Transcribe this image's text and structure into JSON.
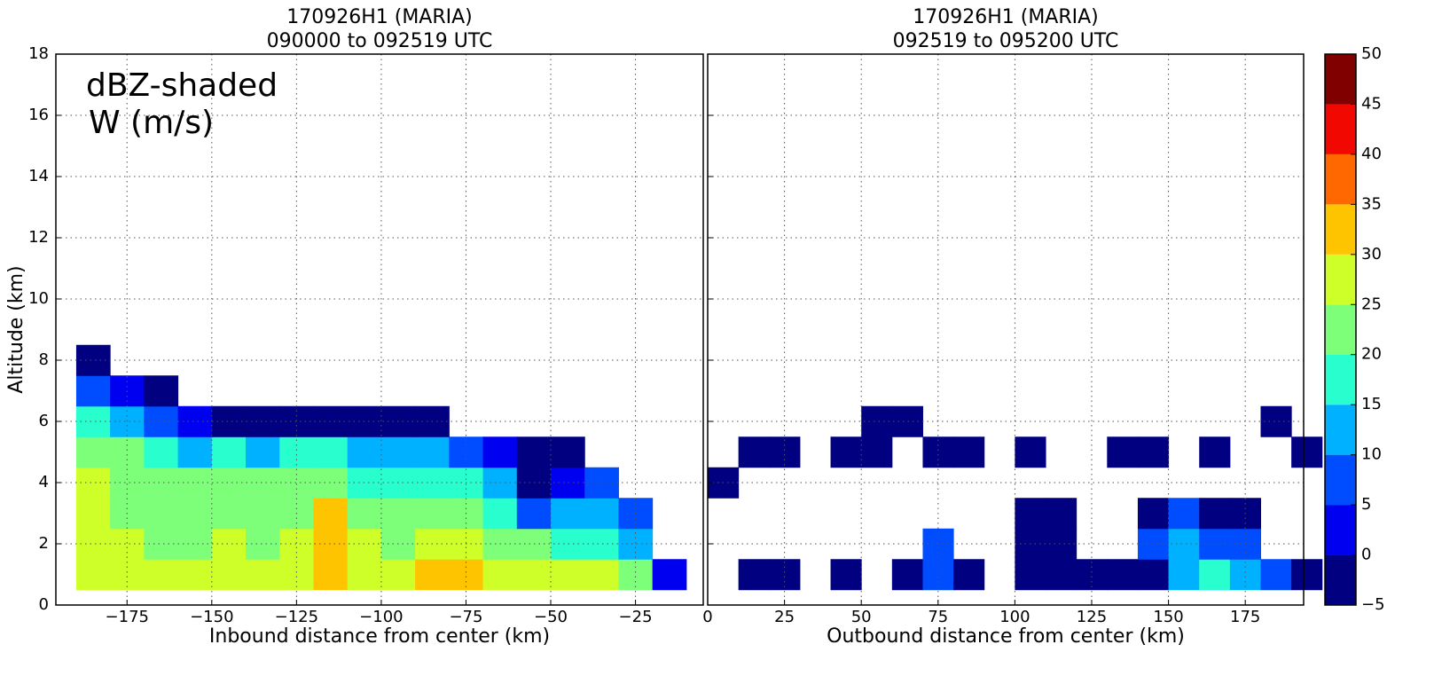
{
  "chart_data": [
    {
      "type": "contourf",
      "title": [
        "170926H1 (MARIA)",
        "090000 to 092519 UTC"
      ],
      "annotation": [
        "dBZ-shaded",
        "W (m/s)"
      ],
      "xlabel": "Inbound distance from center (km)",
      "ylabel": "Altitude (km)",
      "xlim": [
        -196,
        -5
      ],
      "ylim": [
        0,
        18
      ],
      "xticks": [
        {
          "value": -175,
          "label": "−175"
        },
        {
          "value": -150,
          "label": "−150"
        },
        {
          "value": -125,
          "label": "−125"
        },
        {
          "value": -100,
          "label": "−100"
        },
        {
          "value": -75,
          "label": "−75"
        },
        {
          "value": -50,
          "label": "−50"
        },
        {
          "value": -25,
          "label": "−25"
        }
      ],
      "yticks": [
        0,
        2,
        4,
        6,
        8,
        10,
        12,
        14,
        16,
        18
      ],
      "grid": true,
      "x": [
        -185,
        -175,
        -165,
        -155,
        -145,
        -135,
        -125,
        -115,
        -105,
        -95,
        -85,
        -75,
        -65,
        -55,
        -45,
        -35,
        -25,
        -15
      ],
      "y": [
        1,
        2,
        3,
        4,
        5,
        6,
        7,
        8
      ],
      "z": [
        [
          27,
          27,
          27,
          27,
          27,
          27,
          28,
          33,
          28,
          28,
          32,
          30,
          28,
          27,
          27,
          26,
          22,
          2
        ],
        [
          26,
          25,
          24,
          24,
          26,
          24,
          25,
          32,
          26,
          24,
          27,
          25,
          22,
          20,
          18,
          15,
          12,
          null
        ],
        [
          26,
          24,
          22,
          22,
          24,
          22,
          22,
          30,
          23,
          21,
          23,
          20,
          17,
          8,
          12,
          10,
          5,
          null
        ],
        [
          28,
          24,
          22,
          20,
          22,
          20,
          20,
          24,
          18,
          18,
          19,
          16,
          10,
          -2,
          3,
          5,
          null,
          null
        ],
        [
          22,
          20,
          17,
          14,
          16,
          14,
          16,
          16,
          12,
          10,
          12,
          8,
          2,
          -3,
          -2,
          null,
          null,
          null
        ],
        [
          16,
          12,
          7,
          0,
          -2,
          -3,
          -3,
          -3,
          -3,
          -3,
          -3,
          null,
          null,
          null,
          null,
          null,
          null,
          null
        ],
        [
          5,
          0,
          -3,
          null,
          null,
          null,
          null,
          null,
          null,
          null,
          null,
          null,
          null,
          null,
          null,
          null,
          null,
          null
        ],
        [
          -2,
          null,
          null,
          null,
          null,
          null,
          null,
          null,
          null,
          null,
          null,
          null,
          null,
          null,
          null,
          null,
          null,
          null
        ]
      ]
    },
    {
      "type": "contourf",
      "title": [
        "170926H1 (MARIA)",
        "092519 to 095200 UTC"
      ],
      "xlabel": "Outbound distance from center (km)",
      "xlim": [
        0,
        194
      ],
      "ylim": [
        0,
        18
      ],
      "xticks": [
        0,
        25,
        50,
        75,
        100,
        125,
        150,
        175
      ],
      "yticks": [
        0,
        2,
        4,
        6,
        8,
        10,
        12,
        14,
        16,
        18
      ],
      "grid": true,
      "x": [
        5,
        15,
        25,
        35,
        45,
        55,
        65,
        75,
        85,
        95,
        105,
        115,
        125,
        135,
        145,
        155,
        165,
        175,
        185,
        195
      ],
      "y": [
        1,
        2,
        3,
        4,
        5,
        6
      ],
      "z": [
        [
          null,
          -2,
          -2,
          null,
          -3,
          null,
          -2,
          5,
          -3,
          null,
          -2,
          -2,
          -2,
          -3,
          -3,
          12,
          15,
          10,
          5,
          -2
        ],
        [
          null,
          null,
          null,
          null,
          null,
          null,
          null,
          5,
          null,
          null,
          -2,
          -2,
          null,
          null,
          5,
          10,
          8,
          5,
          null,
          null
        ],
        [
          null,
          null,
          null,
          null,
          null,
          null,
          null,
          null,
          null,
          null,
          -3,
          -3,
          null,
          null,
          -2,
          5,
          -3,
          -3,
          null,
          null
        ],
        [
          -3,
          null,
          null,
          null,
          null,
          null,
          null,
          null,
          null,
          null,
          null,
          null,
          null,
          null,
          null,
          null,
          null,
          null,
          null,
          null
        ],
        [
          null,
          -3,
          -3,
          null,
          -3,
          -3,
          null,
          -3,
          -3,
          null,
          -3,
          null,
          null,
          -3,
          -3,
          null,
          -3,
          null,
          null,
          -3
        ],
        [
          null,
          null,
          null,
          null,
          null,
          -3,
          -3,
          null,
          null,
          null,
          null,
          null,
          null,
          null,
          null,
          null,
          null,
          null,
          -3,
          null
        ]
      ]
    }
  ],
  "colorbar": {
    "levels": [
      -5,
      0,
      5,
      10,
      15,
      20,
      25,
      30,
      35,
      40,
      45,
      50
    ],
    "ticks": [
      {
        "value": -5,
        "label": "−5"
      },
      0,
      5,
      10,
      15,
      20,
      25,
      30,
      35,
      40,
      45,
      50
    ],
    "colors": [
      "#000080",
      "#0000f1",
      "#004dff",
      "#00b1ff",
      "#29ffce",
      "#7dff7a",
      "#ceff29",
      "#ffc400",
      "#ff6800",
      "#f10800",
      "#800000"
    ]
  }
}
